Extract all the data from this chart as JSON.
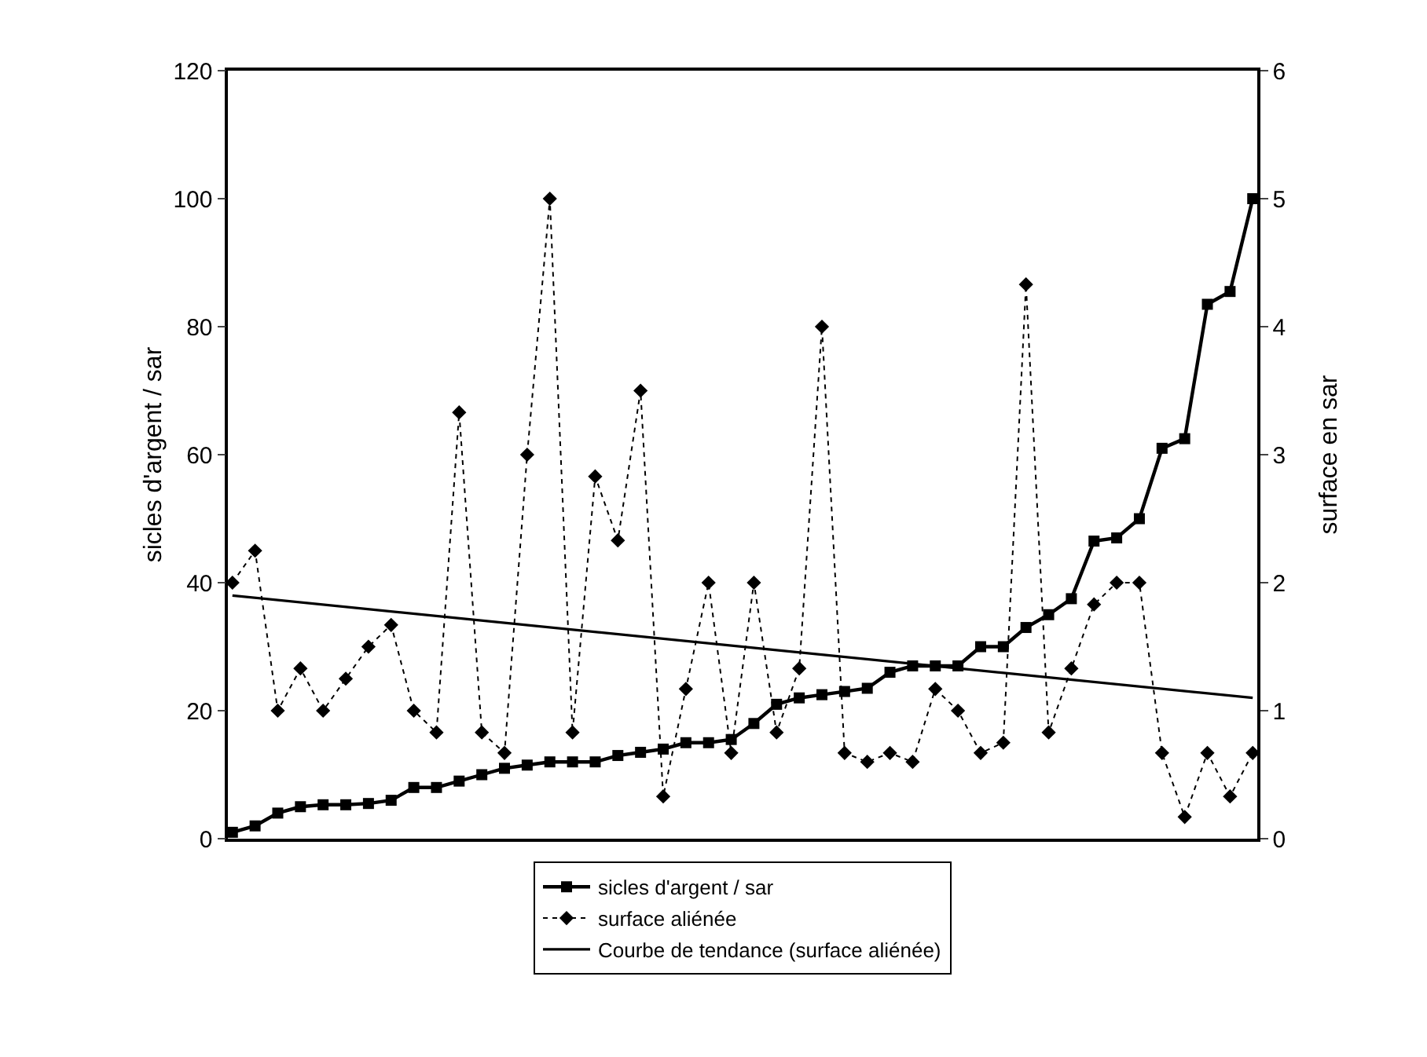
{
  "chart_data": {
    "type": "line",
    "categories": [
      null,
      null,
      null,
      null,
      null,
      null,
      null,
      null,
      null,
      null,
      null,
      null,
      null,
      null,
      null,
      null,
      null,
      null,
      null,
      null,
      null,
      null,
      null,
      null,
      null,
      null,
      null,
      null,
      null,
      null,
      null,
      null,
      null,
      null,
      null,
      null,
      null,
      null,
      null,
      null,
      null,
      null,
      null,
      null,
      null,
      null
    ],
    "ylabel": "sicles d'argent / sar",
    "y2label": "surface en sar",
    "ylim": [
      0,
      120
    ],
    "yticks": [
      0,
      20,
      40,
      60,
      80,
      100,
      120
    ],
    "y2lim": [
      0,
      6
    ],
    "y2ticks": [
      0,
      1,
      2,
      3,
      4,
      5,
      6
    ],
    "grid": false,
    "legend": "bottom",
    "tick_labels": "y",
    "series": [
      {
        "name": "sicles d'argent / sar",
        "color": "#000000",
        "marker": "square",
        "line_style": "solid",
        "values": [
          1,
          2,
          4,
          5,
          5.3,
          5.3,
          5.5,
          6,
          8,
          8,
          9,
          10,
          11,
          11.5,
          12,
          12,
          12,
          13,
          13.5,
          14,
          15,
          15,
          15.5,
          18,
          21,
          22,
          22.5,
          23,
          23.5,
          26,
          27,
          27,
          27,
          30,
          30,
          33,
          35,
          37.5,
          46.5,
          47,
          50,
          61,
          62.5,
          83.5,
          85.5,
          100
        ]
      },
      {
        "name": "surface aliénée",
        "color": "#000000",
        "marker": "diamond",
        "line_style": "dotted",
        "axis": "y2",
        "values": [
          2,
          2.25,
          1,
          1.33,
          1,
          1.25,
          1.5,
          1.67,
          1,
          0.83,
          3.33,
          0.83,
          0.67,
          3,
          5,
          0.83,
          2.83,
          2.33,
          3.5,
          0.33,
          1.17,
          2,
          0.67,
          2,
          0.83,
          1.33,
          4,
          0.67,
          0.6,
          0.67,
          0.6,
          1.17,
          1,
          0.67,
          0.75,
          4.33,
          0.83,
          1.33,
          1.83,
          2,
          2,
          0.67,
          0.17,
          0.67,
          0.33,
          0.67
        ]
      },
      {
        "name": "Courbe de tendance (surface aliénée)",
        "color": "#000000",
        "marker": "none",
        "line_style": "solid",
        "axis": "y2",
        "values": [
          1.9,
          null,
          null,
          null,
          null,
          null,
          null,
          null,
          null,
          null,
          null,
          null,
          null,
          null,
          null,
          null,
          null,
          null,
          null,
          null,
          null,
          null,
          null,
          null,
          null,
          null,
          null,
          null,
          null,
          null,
          null,
          null,
          null,
          null,
          null,
          null,
          null,
          null,
          null,
          null,
          null,
          null,
          null,
          null,
          null,
          1.1
        ]
      }
    ]
  }
}
